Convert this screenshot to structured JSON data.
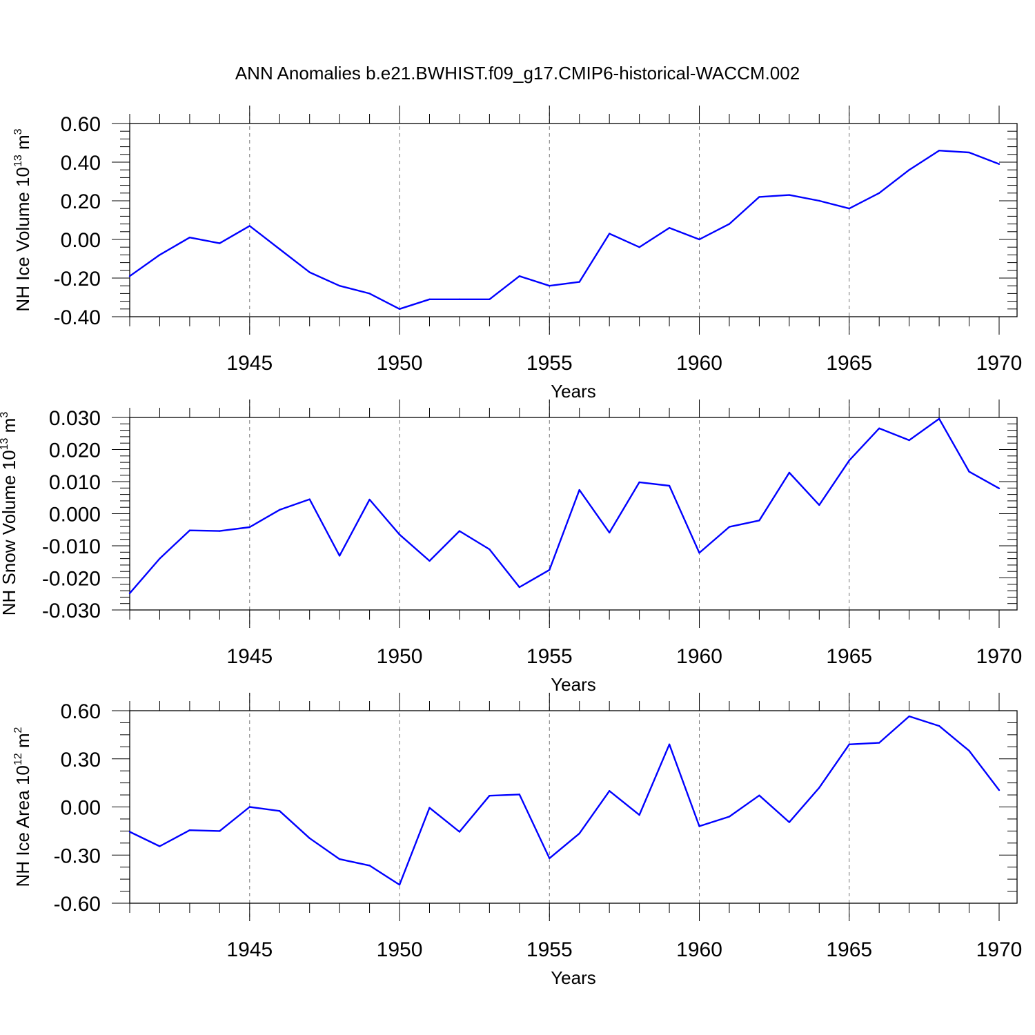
{
  "figure": {
    "title": "ANN Anomalies b.e21.BWHIST.f09_g17.CMIP6-historical-WACCM.002",
    "line_color": "#0000ff",
    "grid_color": "#777777"
  },
  "chart_data": [
    {
      "type": "line",
      "ylabel": {
        "base": "NH Ice Volume 10",
        "exp": "13",
        "unit": " m",
        "unit_exp": "3"
      },
      "xlabel": "Years",
      "xlim": [
        1941,
        1970
      ],
      "x_ticks": [
        1945,
        1950,
        1955,
        1960,
        1965,
        1970
      ],
      "x_tick_labels": [
        "1945",
        "1950",
        "1955",
        "1960",
        "1965",
        "1970"
      ],
      "ylim": [
        -0.4,
        0.6
      ],
      "y_ticks": [
        -0.4,
        -0.2,
        0.0,
        0.2,
        0.4,
        0.6
      ],
      "y_tick_labels": [
        "-0.40",
        "-0.20",
        "0.00",
        "0.20",
        "0.40",
        "0.60"
      ],
      "grid": "vertical dashed at labeled years",
      "series": [
        {
          "x": [
            1941,
            1942,
            1943,
            1944,
            1945,
            1946,
            1947,
            1948,
            1949,
            1950,
            1951,
            1952,
            1953,
            1954,
            1955,
            1956,
            1957,
            1958,
            1959,
            1960,
            1961,
            1962,
            1963,
            1964,
            1965,
            1966,
            1967,
            1968,
            1969,
            1970
          ],
          "values": [
            -0.19,
            -0.08,
            0.01,
            -0.02,
            0.07,
            -0.05,
            -0.17,
            -0.24,
            -0.28,
            -0.36,
            -0.31,
            -0.31,
            -0.31,
            -0.19,
            -0.24,
            -0.22,
            0.03,
            -0.04,
            0.06,
            0.0,
            0.08,
            0.22,
            0.23,
            0.2,
            0.16,
            0.24,
            0.36,
            0.46,
            0.45,
            0.39
          ]
        }
      ]
    },
    {
      "type": "line",
      "ylabel": {
        "base": "NH Snow Volume 10",
        "exp": "13",
        "unit": " m",
        "unit_exp": "3"
      },
      "xlabel": "Years",
      "xlim": [
        1941,
        1970
      ],
      "x_ticks": [
        1945,
        1950,
        1955,
        1960,
        1965,
        1970
      ],
      "x_tick_labels": [
        "1945",
        "1950",
        "1955",
        "1960",
        "1965",
        "1970"
      ],
      "ylim": [
        -0.03,
        0.03
      ],
      "y_ticks": [
        -0.03,
        -0.02,
        -0.01,
        0.0,
        0.01,
        0.02,
        0.03
      ],
      "y_tick_labels": [
        "-0.030",
        "-0.020",
        "-0.010",
        "0.000",
        "0.010",
        "0.020",
        "0.030"
      ],
      "grid": "vertical dashed at labeled years",
      "series": [
        {
          "x": [
            1941,
            1942,
            1943,
            1944,
            1945,
            1946,
            1947,
            1948,
            1949,
            1950,
            1951,
            1952,
            1953,
            1954,
            1955,
            1956,
            1957,
            1958,
            1959,
            1960,
            1961,
            1962,
            1963,
            1964,
            1965,
            1966,
            1967,
            1968,
            1969,
            1970
          ],
          "values": [
            -0.0248,
            -0.014,
            -0.0052,
            -0.0054,
            -0.0042,
            0.0012,
            0.0045,
            -0.0131,
            0.0044,
            -0.0065,
            -0.0147,
            -0.0054,
            -0.0111,
            -0.0229,
            -0.0175,
            0.0074,
            -0.0059,
            0.0098,
            0.0087,
            -0.0122,
            -0.0041,
            -0.0021,
            0.0128,
            0.0027,
            0.0166,
            0.0266,
            0.0229,
            0.0296,
            0.0131,
            0.0079
          ]
        }
      ]
    },
    {
      "type": "line",
      "ylabel": {
        "base": "NH Ice Area 10",
        "exp": "12",
        "unit": " m",
        "unit_exp": "2"
      },
      "xlabel": "Years",
      "xlim": [
        1941,
        1970
      ],
      "x_ticks": [
        1945,
        1950,
        1955,
        1960,
        1965,
        1970
      ],
      "x_tick_labels": [
        "1945",
        "1950",
        "1955",
        "1960",
        "1965",
        "1970"
      ],
      "ylim": [
        -0.6,
        0.6
      ],
      "y_ticks": [
        -0.6,
        -0.3,
        0.0,
        0.3,
        0.6
      ],
      "y_tick_labels": [
        "-0.60",
        "-0.30",
        "0.00",
        "0.30",
        "0.60"
      ],
      "grid": "vertical dashed at labeled years",
      "series": [
        {
          "x": [
            1941,
            1942,
            1943,
            1944,
            1945,
            1946,
            1947,
            1948,
            1949,
            1950,
            1951,
            1952,
            1953,
            1954,
            1955,
            1956,
            1957,
            1958,
            1959,
            1960,
            1961,
            1962,
            1963,
            1964,
            1965,
            1966,
            1967,
            1968,
            1969,
            1970
          ],
          "values": [
            -0.155,
            -0.245,
            -0.145,
            -0.15,
            0.0,
            -0.025,
            -0.195,
            -0.325,
            -0.365,
            -0.485,
            -0.005,
            -0.155,
            0.07,
            0.078,
            -0.32,
            -0.165,
            0.1,
            -0.05,
            0.39,
            -0.12,
            -0.06,
            0.072,
            -0.095,
            0.12,
            0.39,
            0.4,
            0.565,
            0.505,
            0.35,
            0.105
          ]
        }
      ]
    }
  ]
}
